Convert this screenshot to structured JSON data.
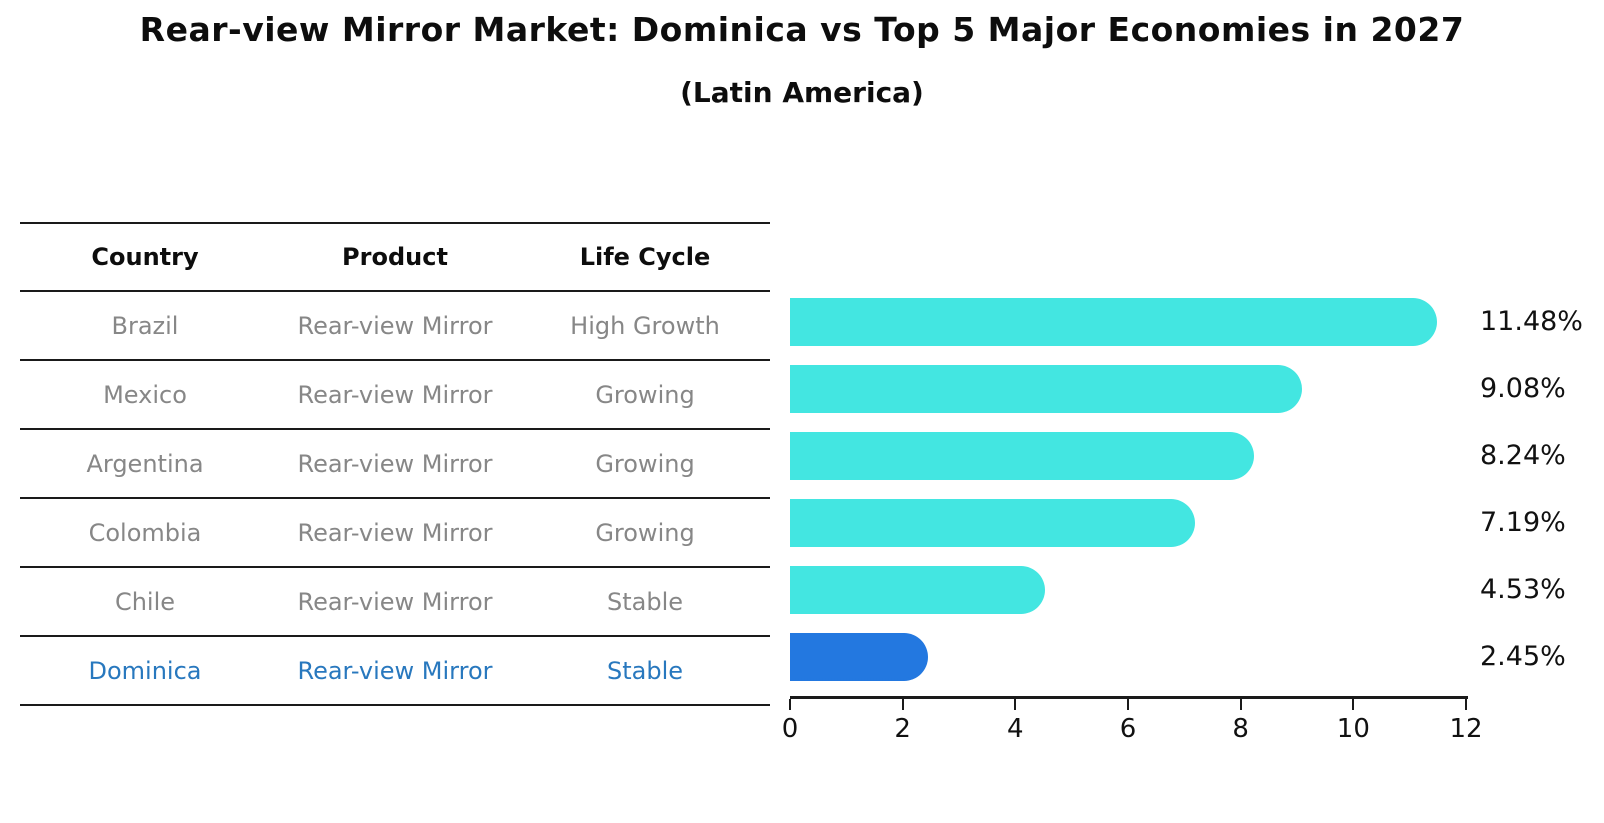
{
  "header": {
    "title": "Rear-view Mirror Market: Dominica vs Top 5 Major Economies in 2027",
    "subtitle": "(Latin America)"
  },
  "table": {
    "headers": [
      "Country",
      "Product",
      "Life Cycle"
    ],
    "rows": [
      {
        "country": "Brazil",
        "product": "Rear-view Mirror",
        "life_cycle": "High Growth",
        "highlight": false
      },
      {
        "country": "Mexico",
        "product": "Rear-view Mirror",
        "life_cycle": "Growing",
        "highlight": false
      },
      {
        "country": "Argentina",
        "product": "Rear-view Mirror",
        "life_cycle": "Growing",
        "highlight": false
      },
      {
        "country": "Colombia",
        "product": "Rear-view Mirror",
        "life_cycle": "Growing",
        "highlight": false
      },
      {
        "country": "Chile",
        "product": "Rear-view Mirror",
        "life_cycle": "Stable",
        "highlight": false
      },
      {
        "country": "Dominica",
        "product": "Rear-view Mirror",
        "life_cycle": "Stable",
        "highlight": true
      }
    ]
  },
  "chart_data": {
    "type": "bar",
    "orientation": "horizontal",
    "title": "Rear-view Mirror Market: Dominica vs Top 5 Major Economies in 2027",
    "subtitle": "(Latin America)",
    "categories": [
      "Brazil",
      "Mexico",
      "Argentina",
      "Colombia",
      "Chile",
      "Dominica"
    ],
    "values": [
      11.48,
      9.08,
      8.24,
      7.19,
      4.53,
      2.45
    ],
    "value_labels": [
      "11.48%",
      "9.08%",
      "8.24%",
      "7.19%",
      "4.53%",
      "2.45%"
    ],
    "xlim": [
      0,
      12
    ],
    "x_ticks": [
      0,
      2,
      4,
      6,
      8,
      10,
      12
    ],
    "grid": false,
    "legend": "none",
    "bar_color": "#43e6e1",
    "highlight_color": "#2378e0",
    "highlight_index": 5,
    "text_color": "#111111",
    "muted_text_color": "#878787",
    "highlight_text_color": "#2878be"
  }
}
